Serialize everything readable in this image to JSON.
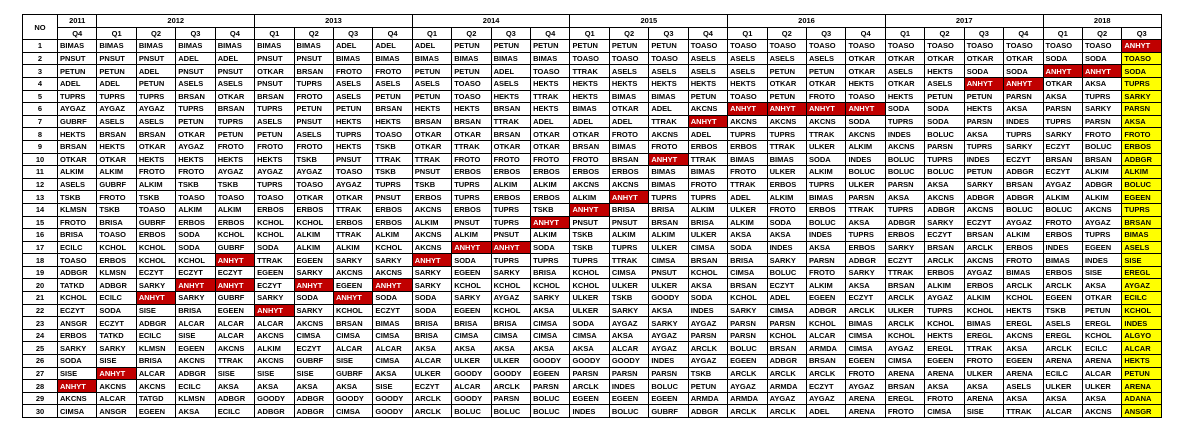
{
  "no_label": "NO",
  "highlight_value": "ANHYT",
  "years": [
    {
      "year": "2011",
      "span": 1
    },
    {
      "year": "2012",
      "span": 4
    },
    {
      "year": "2013",
      "span": 4
    },
    {
      "year": "2014",
      "span": 4
    },
    {
      "year": "2015",
      "span": 4
    },
    {
      "year": "2016",
      "span": 4
    },
    {
      "year": "2017",
      "span": 4
    },
    {
      "year": "2018",
      "span": 3
    }
  ],
  "quarters": [
    "Q4",
    "Q1",
    "Q2",
    "Q3",
    "Q4",
    "Q1",
    "Q2",
    "Q3",
    "Q4",
    "Q1",
    "Q2",
    "Q3",
    "Q4",
    "Q1",
    "Q2",
    "Q3",
    "Q4",
    "Q1",
    "Q2",
    "Q3",
    "Q4",
    "Q1",
    "Q2",
    "Q3",
    "Q4",
    "Q1",
    "Q2",
    "Q3"
  ],
  "highlight_column": 27,
  "colors": {
    "highlight_red": "#c00000",
    "last_column_yellow": "#ffff00"
  },
  "rows": [
    {
      "no": "1",
      "cells": [
        "BIMAS",
        "BIMAS",
        "BIMAS",
        "BIMAS",
        "BIMAS",
        "BIMAS",
        "BIMAS",
        "ADEL",
        "ADEL",
        "ADEL",
        "PETUN",
        "PETUN",
        "PETUN",
        "PETUN",
        "PETUN",
        "PETUN",
        "TOASO",
        "TOASO",
        "TOASO",
        "TOASO",
        "TOASO",
        "TOASO",
        "TOASO",
        "TOASO",
        "TOASO",
        "TOASO",
        "TOASO",
        "ANHYT"
      ]
    },
    {
      "no": "2",
      "cells": [
        "PNSUT",
        "PNSUT",
        "PNSUT",
        "ADEL",
        "ADEL",
        "PNSUT",
        "PNSUT",
        "BIMAS",
        "BIMAS",
        "BIMAS",
        "BIMAS",
        "BIMAS",
        "BIMAS",
        "TOASO",
        "TOASO",
        "TOASO",
        "ASELS",
        "ASELS",
        "ASELS",
        "ASELS",
        "OTKAR",
        "OTKAR",
        "OTKAR",
        "OTKAR",
        "OTKAR",
        "SODA",
        "SODA",
        "TOASO"
      ]
    },
    {
      "no": "3",
      "cells": [
        "PETUN",
        "PETUN",
        "ADEL",
        "PNSUT",
        "PNSUT",
        "OTKAR",
        "BRSAN",
        "FROTO",
        "FROTO",
        "PETUN",
        "PETUN",
        "ADEL",
        "TOASO",
        "TTRAK",
        "ASELS",
        "ASELS",
        "ASELS",
        "ASELS",
        "PETUN",
        "PETUN",
        "OTKAR",
        "ASELS",
        "HEKTS",
        "SODA",
        "SODA",
        "ANHYT",
        "ANHYT",
        "SODA"
      ]
    },
    {
      "no": "4",
      "cells": [
        "ADEL",
        "ADEL",
        "PETUN",
        "ASELS",
        "ASELS",
        "PNSUT",
        "TUPRS",
        "ASELS",
        "ASELS",
        "ASELS",
        "TOASO",
        "ASELS",
        "HEKTS",
        "HEKTS",
        "HEKTS",
        "HEKTS",
        "HEKTS",
        "HEKTS",
        "OTKAR",
        "OTKAR",
        "HEKTS",
        "OTKAR",
        "ASELS",
        "ANHYT",
        "ANHYT",
        "OTKAR",
        "AKSA",
        "TUPRS"
      ]
    },
    {
      "no": "5",
      "cells": [
        "TUPRS",
        "TUPRS",
        "TUPRS",
        "BRSAN",
        "OTKAR",
        "BRSAN",
        "FROTO",
        "ASELS",
        "PETUN",
        "PETUN",
        "TOASO",
        "HEKTS",
        "TTRAK",
        "HEKTS",
        "BIMAS",
        "BIMAS",
        "PETUN",
        "TOASO",
        "PETUN",
        "FROTO",
        "TOASO",
        "HEKTS",
        "PETUN",
        "PETUN",
        "PARSN",
        "AKSA",
        "TUPRS",
        "SARKY"
      ]
    },
    {
      "no": "6",
      "cells": [
        "AYGAZ",
        "AYGAZ",
        "AYGAZ",
        "TUPRS",
        "BRSAN",
        "TUPRS",
        "PETUN",
        "PETUN",
        "BRSAN",
        "HEKTS",
        "HEKTS",
        "BRSAN",
        "HEKTS",
        "BIMAS",
        "OTKAR",
        "ADEL",
        "AKCNS",
        "ANHYT",
        "ANHYT",
        "ANHYT",
        "ANHYT",
        "SODA",
        "SODA",
        "HEKTS",
        "AKSA",
        "PARSN",
        "SARKY",
        "PARSN"
      ]
    },
    {
      "no": "7",
      "cells": [
        "GUBRF",
        "ASELS",
        "ASELS",
        "PETUN",
        "TUPRS",
        "ASELS",
        "PNSUT",
        "HEKTS",
        "HEKTS",
        "BRSAN",
        "BRSAN",
        "TTRAK",
        "ADEL",
        "ADEL",
        "ADEL",
        "TTRAK",
        "ANHYT",
        "AKCNS",
        "AKCNS",
        "AKCNS",
        "SODA",
        "TUPRS",
        "SODA",
        "PARSN",
        "INDES",
        "TUPRS",
        "PARSN",
        "AKSA"
      ]
    },
    {
      "no": "8",
      "cells": [
        "HEKTS",
        "BRSAN",
        "BRSAN",
        "OTKAR",
        "PETUN",
        "PETUN",
        "ASELS",
        "TUPRS",
        "TOASO",
        "OTKAR",
        "OTKAR",
        "BRSAN",
        "OTKAR",
        "OTKAR",
        "FROTO",
        "AKCNS",
        "ADEL",
        "TUPRS",
        "TUPRS",
        "TTRAK",
        "AKCNS",
        "INDES",
        "BOLUC",
        "AKSA",
        "TUPRS",
        "SARKY",
        "FROTO",
        "FROTO"
      ]
    },
    {
      "no": "9",
      "cells": [
        "BRSAN",
        "HEKTS",
        "OTKAR",
        "AYGAZ",
        "FROTO",
        "FROTO",
        "FROTO",
        "HEKTS",
        "TSKB",
        "OTKAR",
        "TTRAK",
        "OTKAR",
        "OTKAR",
        "BRSAN",
        "BIMAS",
        "FROTO",
        "ERBOS",
        "ERBOS",
        "TTRAK",
        "ULKER",
        "ALKIM",
        "AKCNS",
        "PARSN",
        "TUPRS",
        "SARKY",
        "ECZYT",
        "BOLUC",
        "ERBOS"
      ]
    },
    {
      "no": "10",
      "cells": [
        "OTKAR",
        "OTKAR",
        "HEKTS",
        "HEKTS",
        "HEKTS",
        "HEKTS",
        "TSKB",
        "PNSUT",
        "TTRAK",
        "TTRAK",
        "FROTO",
        "FROTO",
        "FROTO",
        "FROTO",
        "BRSAN",
        "ANHYT",
        "TTRAK",
        "BIMAS",
        "BIMAS",
        "SODA",
        "INDES",
        "BOLUC",
        "TUPRS",
        "INDES",
        "ECZYT",
        "BRSAN",
        "BRSAN",
        "ADBGR"
      ]
    },
    {
      "no": "11",
      "cells": [
        "ALKIM",
        "ALKIM",
        "FROTO",
        "FROTO",
        "AYGAZ",
        "AYGAZ",
        "AYGAZ",
        "TOASO",
        "TSKB",
        "PNSUT",
        "ERBOS",
        "ERBOS",
        "ERBOS",
        "ERBOS",
        "ERBOS",
        "BIMAS",
        "BIMAS",
        "FROTO",
        "ULKER",
        "ALKIM",
        "BOLUC",
        "BOLUC",
        "BOLUC",
        "PETUN",
        "ADBGR",
        "ECZYT",
        "ALKIM",
        "ALKIM"
      ]
    },
    {
      "no": "12",
      "cells": [
        "ASELS",
        "GUBRF",
        "ALKIM",
        "TSKB",
        "TSKB",
        "TUPRS",
        "TOASO",
        "AYGAZ",
        "TUPRS",
        "TSKB",
        "TUPRS",
        "ALKIM",
        "ALKIM",
        "AKCNS",
        "AKCNS",
        "BIMAS",
        "FROTO",
        "TTRAK",
        "ERBOS",
        "TUPRS",
        "ULKER",
        "PARSN",
        "AKSA",
        "SARKY",
        "BRSAN",
        "AYGAZ",
        "ADBGR",
        "BOLUC"
      ]
    },
    {
      "no": "13",
      "cells": [
        "TSKB",
        "FROTO",
        "TSKB",
        "TOASO",
        "TOASO",
        "TOASO",
        "OTKAR",
        "OTKAR",
        "PNSUT",
        "ERBOS",
        "TUPRS",
        "ERBOS",
        "ERBOS",
        "ALKIM",
        "ANHYT",
        "TUPRS",
        "TUPRS",
        "ADEL",
        "ALKIM",
        "BIMAS",
        "PARSN",
        "AKSA",
        "AKCNS",
        "ADBGR",
        "ADBGR",
        "ALKIM",
        "ALKIM",
        "EGEEN"
      ]
    },
    {
      "no": "14",
      "cells": [
        "KLMSN",
        "TSKB",
        "TOASO",
        "ALKIM",
        "ALKIM",
        "ERBOS",
        "ERBOS",
        "TTRAK",
        "ERBOS",
        "AKCNS",
        "ERBOS",
        "TUPRS",
        "TSKB",
        "ANHYT",
        "BRISA",
        "BRISA",
        "ALKIM",
        "ULKER",
        "FROTO",
        "ERBOS",
        "TTRAK",
        "TUPRS",
        "ADBGR",
        "AKCNS",
        "BOLUC",
        "BOLUC",
        "AKCNS",
        "TUPRS"
      ]
    },
    {
      "no": "15",
      "cells": [
        "FROTO",
        "BRISA",
        "GUBRF",
        "ERBOS",
        "ERBOS",
        "KCHOL",
        "KCHOL",
        "ERBOS",
        "ERBOS",
        "ALKIM",
        "PNSUT",
        "TUPRS",
        "ANHYT",
        "PNSUT",
        "PNSUT",
        "BRSAN",
        "BRISA",
        "ALKIM",
        "SODA",
        "BOLUC",
        "AKSA",
        "ADBGR",
        "SARKY",
        "ECZYT",
        "AYGAZ",
        "FROTO",
        "AYGAZ",
        "BRSAN"
      ]
    },
    {
      "no": "16",
      "cells": [
        "BRISA",
        "TOASO",
        "ERBOS",
        "SODA",
        "KCHOL",
        "KCHOL",
        "ALKIM",
        "TTRAK",
        "ALKIM",
        "AKCNS",
        "ALKIM",
        "PNSUT",
        "ALKIM",
        "TSKB",
        "ALKIM",
        "ALKIM",
        "ULKER",
        "AKSA",
        "AKSA",
        "INDES",
        "TUPRS",
        "ERBOS",
        "ECZYT",
        "BRSAN",
        "ALKIM",
        "ERBOS",
        "TUPRS",
        "BIMAS"
      ]
    },
    {
      "no": "17",
      "cells": [
        "ECILC",
        "KCHOL",
        "KCHOL",
        "SODA",
        "GUBRF",
        "SODA",
        "ALKIM",
        "ALKIM",
        "KCHOL",
        "AKCNS",
        "ANHYT",
        "ANHYT",
        "SODA",
        "TSKB",
        "TUPRS",
        "ULKER",
        "CIMSA",
        "SODA",
        "INDES",
        "AKSA",
        "ERBOS",
        "SARKY",
        "BRSAN",
        "ARCLK",
        "ERBOS",
        "INDES",
        "EGEEN",
        "ASELS"
      ]
    },
    {
      "no": "18",
      "cells": [
        "TOASO",
        "ERBOS",
        "KCHOL",
        "KCHOL",
        "ANHYT",
        "TTRAK",
        "EGEEN",
        "SARKY",
        "SARKY",
        "ANHYT",
        "SODA",
        "TUPRS",
        "TUPRS",
        "TUPRS",
        "TTRAK",
        "CIMSA",
        "BRSAN",
        "BRISA",
        "SARKY",
        "PARSN",
        "ADBGR",
        "ECZYT",
        "ARCLK",
        "AKCNS",
        "FROTO",
        "BIMAS",
        "INDES",
        "SISE"
      ]
    },
    {
      "no": "19",
      "cells": [
        "ADBGR",
        "KLMSN",
        "ECZYT",
        "ECZYT",
        "ECZYT",
        "EGEEN",
        "SARKY",
        "AKCNS",
        "AKCNS",
        "SARKY",
        "EGEEN",
        "SARKY",
        "BRISA",
        "KCHOL",
        "CIMSA",
        "PNSUT",
        "KCHOL",
        "CIMSA",
        "BOLUC",
        "FROTO",
        "SARKY",
        "TTRAK",
        "ERBOS",
        "AYGAZ",
        "BIMAS",
        "ERBOS",
        "SISE",
        "EREGL"
      ]
    },
    {
      "no": "20",
      "cells": [
        "TATKD",
        "ADBGR",
        "SARKY",
        "ANHYT",
        "ANHYT",
        "ECZYT",
        "ANHYT",
        "EGEEN",
        "ANHYT",
        "SARKY",
        "KCHOL",
        "KCHOL",
        "KCHOL",
        "KCHOL",
        "ULKER",
        "ULKER",
        "AKSA",
        "BRSAN",
        "ECZYT",
        "ALKIM",
        "AKSA",
        "BRSAN",
        "ALKIM",
        "ERBOS",
        "ARCLK",
        "ARCLK",
        "AKSA",
        "AYGAZ"
      ]
    },
    {
      "no": "21",
      "cells": [
        "KCHOL",
        "ECILC",
        "ANHYT",
        "SARKY",
        "GUBRF",
        "SARKY",
        "SODA",
        "ANHYT",
        "SODA",
        "SODA",
        "SARKY",
        "AYGAZ",
        "SARKY",
        "ULKER",
        "TSKB",
        "GOODY",
        "SODA",
        "KCHOL",
        "ADEL",
        "EGEEN",
        "ECZYT",
        "ARCLK",
        "AYGAZ",
        "ALKIM",
        "KCHOL",
        "EGEEN",
        "OTKAR",
        "ECILC"
      ]
    },
    {
      "no": "22",
      "cells": [
        "ECZYT",
        "SODA",
        "SISE",
        "BRISA",
        "EGEEN",
        "ANHYT",
        "SARKY",
        "KCHOL",
        "ECZYT",
        "SODA",
        "EGEEN",
        "KCHOL",
        "AKSA",
        "ULKER",
        "SARKY",
        "AKSA",
        "INDES",
        "SARKY",
        "CIMSA",
        "ADBGR",
        "ARCLK",
        "ULKER",
        "TUPRS",
        "KCHOL",
        "HEKTS",
        "TSKB",
        "PETUN",
        "KCHOL"
      ]
    },
    {
      "no": "23",
      "cells": [
        "ANSGR",
        "ECZYT",
        "ADBGR",
        "ALCAR",
        "ALCAR",
        "ALCAR",
        "AKCNS",
        "BRSAN",
        "BIMAS",
        "BRISA",
        "BRISA",
        "BRISA",
        "CIMSA",
        "SODA",
        "AYGAZ",
        "SARKY",
        "AYGAZ",
        "PARSN",
        "PARSN",
        "KCHOL",
        "BIMAS",
        "ARCLK",
        "KCHOL",
        "BIMAS",
        "EREGL",
        "ASELS",
        "EREGL",
        "INDES"
      ]
    },
    {
      "no": "24",
      "cells": [
        "ERBOS",
        "TATKD",
        "ECILC",
        "SISE",
        "ALCAR",
        "AKCNS",
        "CIMSA",
        "CIMSA",
        "CIMSA",
        "BRISA",
        "CIMSA",
        "CIMSA",
        "CIMSA",
        "CIMSA",
        "AKSA",
        "AYGAZ",
        "PARSN",
        "PARSN",
        "KCHOL",
        "ALCAR",
        "CIMSA",
        "KCHOL",
        "HEKTS",
        "EREGL",
        "AKCNS",
        "EREGL",
        "KCHOL",
        "ALGYO"
      ]
    },
    {
      "no": "25",
      "cells": [
        "SARKY",
        "SARKY",
        "KLMSN",
        "EGEEN",
        "AKCNS",
        "ALKIM",
        "ECZYT",
        "ALCAR",
        "ALCAR",
        "AKSA",
        "AKSA",
        "AKSA",
        "AKSA",
        "AKSA",
        "ALCAR",
        "AYGAZ",
        "ARCLK",
        "BOLUC",
        "BRSAN",
        "ARMDA",
        "CIMSA",
        "AYGAZ",
        "EREGL",
        "TTRAK",
        "AKSA",
        "ARCLK",
        "ECILC",
        "ALCAR"
      ]
    },
    {
      "no": "26",
      "cells": [
        "SODA",
        "SISE",
        "BRISA",
        "AKCNS",
        "TTRAK",
        "AKCNS",
        "GUBRF",
        "SISE",
        "CIMSA",
        "ALCAR",
        "ULKER",
        "ULKER",
        "GOODY",
        "GOODY",
        "GOODY",
        "INDES",
        "AYGAZ",
        "EGEEN",
        "ADBGR",
        "BRSAN",
        "EGEEN",
        "CIMSA",
        "EGEEN",
        "FROTO",
        "EGEEN",
        "ARENA",
        "ARENA",
        "HEKTS"
      ]
    },
    {
      "no": "27",
      "cells": [
        "SISE",
        "ANHYT",
        "ALCAR",
        "ADBGR",
        "SISE",
        "SISE",
        "SISE",
        "GUBRF",
        "AKSA",
        "ULKER",
        "GOODY",
        "GOODY",
        "EGEEN",
        "PARSN",
        "PARSN",
        "PARSN",
        "TSKB",
        "ARCLK",
        "ARCLK",
        "ARCLK",
        "FROTO",
        "ARENA",
        "ARENA",
        "ULKER",
        "ARENA",
        "ECILC",
        "ALCAR",
        "PETUN"
      ]
    },
    {
      "no": "28",
      "cells": [
        "ANHYT",
        "AKCNS",
        "AKCNS",
        "ECILC",
        "AKSA",
        "AKSA",
        "AKSA",
        "AKSA",
        "SISE",
        "ECZYT",
        "ALCAR",
        "ARCLK",
        "PARSN",
        "ARCLK",
        "INDES",
        "BOLUC",
        "PETUN",
        "AYGAZ",
        "ARMDA",
        "ECZYT",
        "AYGAZ",
        "BRSAN",
        "AKSA",
        "AKSA",
        "ASELS",
        "ULKER",
        "ULKER",
        "ARENA"
      ]
    },
    {
      "no": "29",
      "cells": [
        "AKCNS",
        "ALCAR",
        "TATGD",
        "KLMSN",
        "ADBGR",
        "GOODY",
        "ADBGR",
        "GOODY",
        "GOODY",
        "ARCLK",
        "GOODY",
        "PARSN",
        "BOLUC",
        "EGEEN",
        "EGEEN",
        "EGEEN",
        "ARMDA",
        "ARMDA",
        "AYGAZ",
        "AYGAZ",
        "ARENA",
        "EREGL",
        "FROTO",
        "ARENA",
        "AKSA",
        "AKSA",
        "AKSA",
        "ADANA"
      ]
    },
    {
      "no": "30",
      "cells": [
        "CIMSA",
        "ANSGR",
        "EGEEN",
        "AKSA",
        "ECILC",
        "ADBGR",
        "ADBGR",
        "CIMSA",
        "GOODY",
        "ARCLK",
        "BOLUC",
        "BOLUC",
        "BOLUC",
        "INDES",
        "BOLUC",
        "GUBRF",
        "ADBGR",
        "ARCLK",
        "ARCLK",
        "ADEL",
        "ARENA",
        "FROTO",
        "CIMSA",
        "SISE",
        "TTRAK",
        "ALCAR",
        "AKCNS",
        "ANSGR"
      ]
    }
  ]
}
